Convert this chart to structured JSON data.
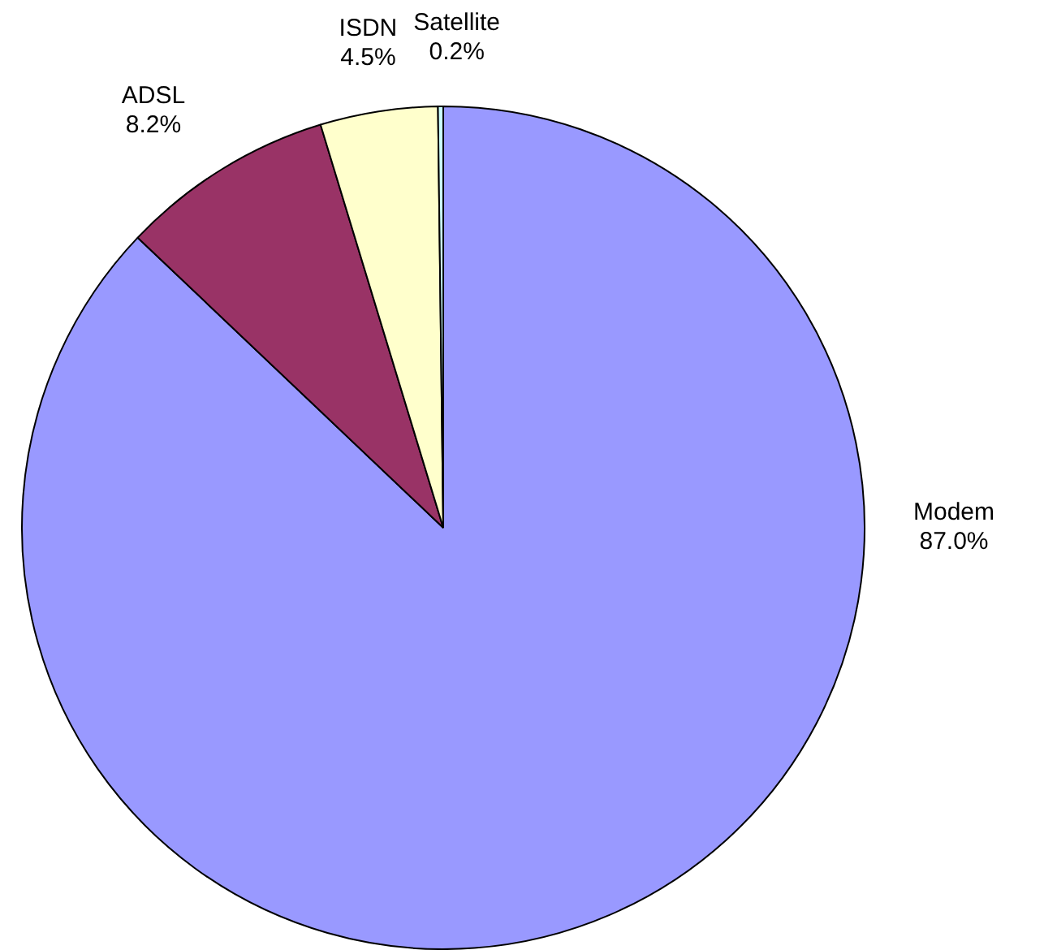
{
  "chart_data": {
    "type": "pie",
    "categories": [
      "Modem",
      "ADSL",
      "ISDN",
      "Satellite"
    ],
    "values": [
      87.0,
      8.2,
      4.5,
      0.2
    ],
    "colors": [
      "#9999ff",
      "#993366",
      "#ffffcc",
      "#ccffff"
    ],
    "value_labels": [
      "87.0%",
      "8.2%",
      "4.5%",
      "0.2%"
    ],
    "legend": false
  }
}
